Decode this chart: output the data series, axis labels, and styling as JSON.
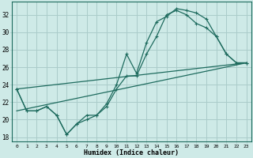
{
  "title": "",
  "xlabel": "Humidex (Indice chaleur)",
  "bg_color": "#ceeae7",
  "grid_color": "#aaccca",
  "line_color": "#1e6b5e",
  "xlim": [
    -0.5,
    23.5
  ],
  "ylim": [
    17.5,
    33.5
  ],
  "xticks": [
    0,
    1,
    2,
    3,
    4,
    5,
    6,
    7,
    8,
    9,
    10,
    11,
    12,
    13,
    14,
    15,
    16,
    17,
    18,
    19,
    20,
    21,
    22,
    23
  ],
  "yticks": [
    18,
    20,
    22,
    24,
    26,
    28,
    30,
    32
  ],
  "line1_x": [
    0,
    1,
    2,
    3,
    4,
    5,
    6,
    7,
    8,
    9,
    10,
    11,
    12,
    13,
    14,
    15,
    16,
    17,
    18,
    19,
    20,
    21,
    22,
    23
  ],
  "line1_y": [
    23.5,
    21.0,
    21.0,
    21.5,
    20.5,
    18.3,
    19.5,
    20.5,
    20.5,
    21.8,
    24.0,
    27.5,
    25.3,
    28.8,
    31.2,
    31.8,
    32.7,
    32.5,
    32.2,
    31.5,
    29.5,
    27.5,
    26.5,
    26.5
  ],
  "line2_x": [
    0,
    1,
    2,
    3,
    4,
    5,
    6,
    7,
    8,
    9,
    10,
    11,
    12,
    13,
    14,
    15,
    16,
    17,
    18,
    19,
    20,
    21,
    22,
    23
  ],
  "line2_y": [
    23.5,
    21.0,
    21.0,
    21.5,
    20.5,
    18.3,
    19.5,
    20.0,
    20.5,
    21.5,
    23.5,
    25.0,
    25.0,
    27.5,
    29.5,
    32.0,
    32.5,
    32.0,
    31.0,
    30.5,
    29.5,
    27.5,
    26.5,
    26.5
  ],
  "line3_x": [
    0,
    23
  ],
  "line3_y": [
    23.5,
    26.5
  ],
  "line4_x": [
    0,
    23
  ],
  "line4_y": [
    21.0,
    26.5
  ]
}
